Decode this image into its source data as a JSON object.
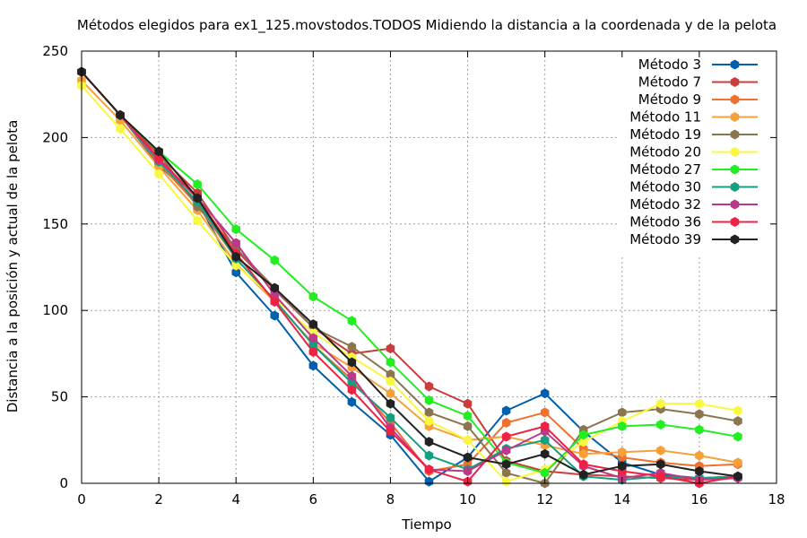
{
  "chart_data": {
    "type": "line",
    "title": "Métodos elegidos para ex1_125.movstodos.TODOS Midiendo la distancia a la coordenada y de la pelota",
    "xlabel": "Tiempo",
    "ylabel": "Distancia a la posición y actual de la pelota",
    "xlim": [
      0,
      18
    ],
    "ylim": [
      0,
      250
    ],
    "x_ticks": [
      0,
      2,
      4,
      6,
      8,
      10,
      12,
      14,
      16,
      18
    ],
    "y_ticks": [
      0,
      50,
      100,
      150,
      200,
      250
    ],
    "grid": true,
    "legend_position": "top-right",
    "x": [
      0,
      1,
      2,
      3,
      4,
      5,
      6,
      7,
      8,
      9,
      10,
      11,
      12,
      13,
      14,
      15,
      16,
      17
    ],
    "series": [
      {
        "name": "Método 3",
        "color": "#0060ad",
        "values": [
          238,
          213,
          184,
          163,
          122,
          97,
          68,
          47,
          28,
          1,
          15,
          42,
          52,
          30,
          12,
          5,
          3,
          4
        ]
      },
      {
        "name": "Método 7",
        "color": "#cc3c3c",
        "values": [
          238,
          213,
          190,
          168,
          135,
          112,
          90,
          75,
          78,
          56,
          46,
          13,
          7,
          5,
          4,
          3,
          2,
          4
        ]
      },
      {
        "name": "Método 9",
        "color": "#f07030",
        "values": [
          238,
          213,
          185,
          161,
          130,
          106,
          80,
          60,
          35,
          7,
          11,
          35,
          41,
          20,
          15,
          12,
          10,
          11
        ]
      },
      {
        "name": "Método 11",
        "color": "#f6a03a",
        "values": [
          233,
          210,
          183,
          158,
          127,
          105,
          81,
          67,
          52,
          33,
          25,
          27,
          22,
          17,
          18,
          19,
          16,
          12
        ]
      },
      {
        "name": "Método 19",
        "color": "#8a7550",
        "values": [
          238,
          213,
          191,
          160,
          136,
          113,
          90,
          79,
          63,
          41,
          33,
          6,
          0,
          31,
          41,
          43,
          40,
          36
        ]
      },
      {
        "name": "Método 20",
        "color": "#f8f840",
        "values": [
          230,
          205,
          179,
          152,
          126,
          107,
          87,
          73,
          59,
          36,
          25,
          1,
          8,
          24,
          36,
          46,
          46,
          42
        ]
      },
      {
        "name": "Método 27",
        "color": "#22ee22",
        "values": [
          238,
          213,
          192,
          173,
          147,
          129,
          108,
          94,
          70,
          48,
          39,
          12,
          6,
          28,
          33,
          34,
          31,
          27
        ]
      },
      {
        "name": "Método 30",
        "color": "#14a080",
        "values": [
          238,
          213,
          186,
          163,
          130,
          106,
          80,
          58,
          38,
          16,
          8,
          20,
          25,
          4,
          2,
          4,
          3,
          4
        ]
      },
      {
        "name": "Método 32",
        "color": "#bb3a88",
        "values": [
          238,
          213,
          187,
          165,
          139,
          109,
          84,
          62,
          32,
          8,
          7,
          19,
          30,
          10,
          3,
          6,
          2,
          3
        ]
      },
      {
        "name": "Método 36",
        "color": "#ee2244",
        "values": [
          238,
          213,
          188,
          165,
          133,
          105,
          76,
          54,
          30,
          8,
          1,
          27,
          33,
          11,
          7,
          4,
          0,
          4
        ]
      },
      {
        "name": "Método 39",
        "color": "#222222",
        "values": [
          238,
          213,
          192,
          165,
          131,
          113,
          92,
          70,
          46,
          24,
          15,
          11,
          17,
          5,
          10,
          11,
          7,
          4
        ]
      }
    ]
  }
}
